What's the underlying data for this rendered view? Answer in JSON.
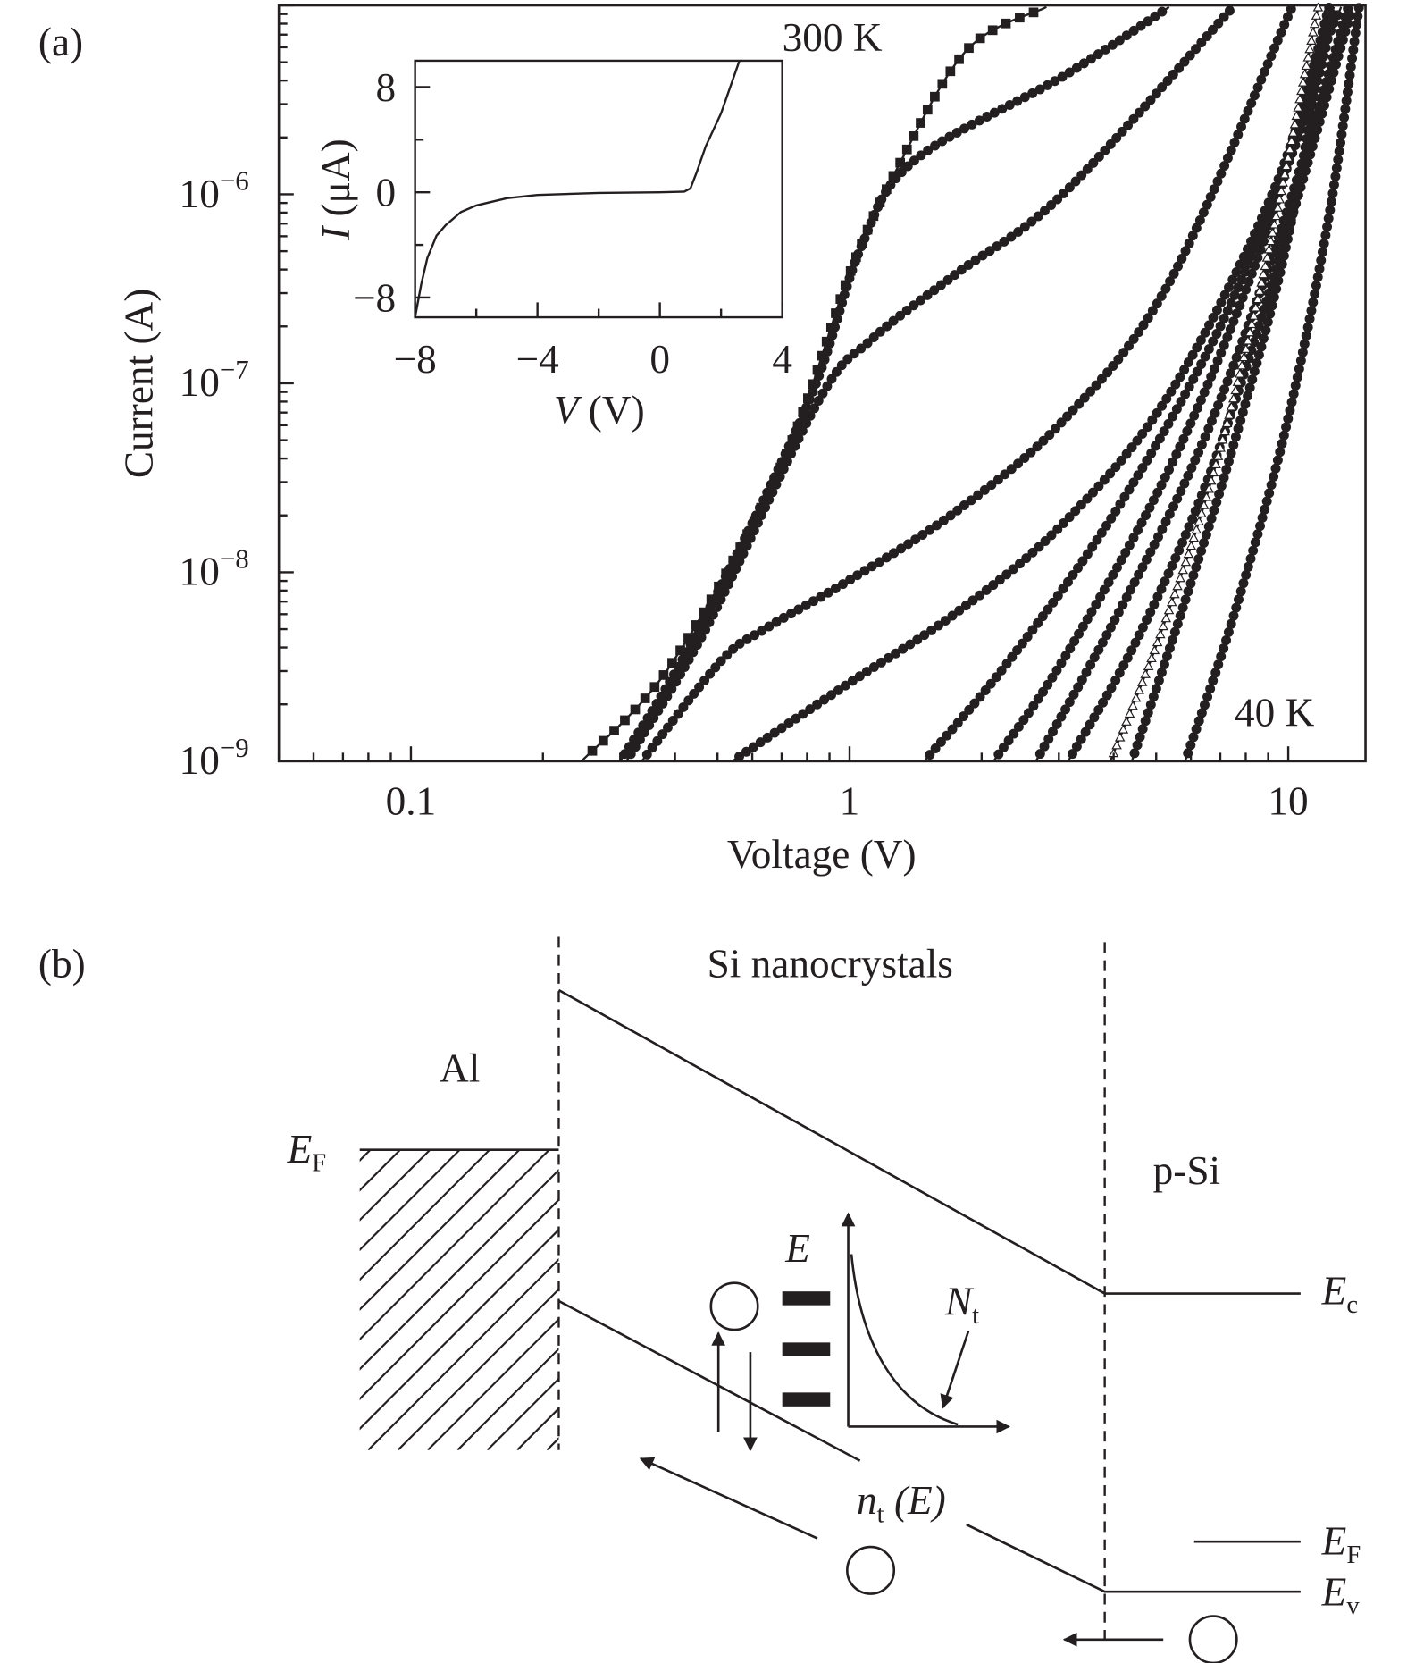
{
  "panel_a": {
    "label": "(a)",
    "annotation_top": "300 K",
    "annotation_bottom": "40 K"
  },
  "panel_b": {
    "label": "(b)",
    "region_middle": "Si nanocrystals",
    "region_left": "Al",
    "region_right": "p-Si",
    "ef_left": {
      "main": "E",
      "sub": "F"
    },
    "ec": {
      "main": "E",
      "sub": "c"
    },
    "ef_right": {
      "main": "E",
      "sub": "F"
    },
    "ev": {
      "main": "E",
      "sub": "v"
    },
    "dos_axis": "E",
    "nt": {
      "main": "N",
      "sub": "t"
    },
    "nt_e": {
      "main": "n",
      "sub": "t",
      "rest": " (E)"
    }
  },
  "chart_data": [
    {
      "type": "scatter",
      "title": "",
      "xlabel": "Voltage (V)",
      "ylabel": "Current (A)",
      "xscale": "log",
      "yscale": "log",
      "xlim": [
        0.05,
        15
      ],
      "ylim": [
        1e-09,
        1e-05
      ],
      "xticks": [
        0.1,
        1,
        10
      ],
      "xtick_labels": [
        "0.1",
        "1",
        "10"
      ],
      "yticks": [
        1e-09,
        1e-08,
        1e-07,
        1e-06
      ],
      "ytick_labels": [
        {
          "base": "10",
          "exp": "−9"
        },
        {
          "base": "10",
          "exp": "−8"
        },
        {
          "base": "10",
          "exp": "−7"
        },
        {
          "base": "10",
          "exp": "−6"
        }
      ],
      "grid": false,
      "legend": "none",
      "marker_color": "#231f20",
      "series": [
        {
          "marker": "square",
          "points": [
            [
              0.245,
              1e-09
            ],
            [
              0.39,
              3.2e-09
            ],
            [
              0.7,
              3.7e-08
            ],
            [
              1.0,
              3.8e-07
            ],
            [
              1.29,
              1.4e-06
            ],
            [
              1.85,
              5.8e-06
            ],
            [
              2.81,
              9.8e-06
            ]
          ]
        },
        {
          "marker": "circle",
          "points": [
            [
              0.3,
              1e-09
            ],
            [
              0.44,
              4.4e-09
            ],
            [
              0.8,
              7.6e-08
            ],
            [
              1.06,
              5.2e-07
            ],
            [
              1.4,
              1.5e-06
            ],
            [
              3.06,
              4.2e-06
            ],
            [
              5.35,
              9.8e-06
            ]
          ]
        },
        {
          "marker": "circle",
          "points": [
            [
              0.31,
              1e-09
            ],
            [
              0.47,
              5e-09
            ],
            [
              0.85,
              8.1e-08
            ],
            [
              1.12,
              1.7e-07
            ],
            [
              1.75,
              3.8e-07
            ],
            [
              3.06,
              1e-06
            ],
            [
              7.48,
              9.8e-06
            ]
          ]
        },
        {
          "marker": "circle",
          "points": [
            [
              0.336,
              1e-09
            ],
            [
              0.51,
              3.4e-09
            ],
            [
              0.64,
              5e-09
            ],
            [
              1.0,
              9.1e-09
            ],
            [
              1.75,
              2.1e-08
            ],
            [
              3.06,
              6.3e-08
            ],
            [
              5.35,
              3.4e-07
            ],
            [
              10.2,
              9.8e-06
            ]
          ]
        },
        {
          "marker": "circle",
          "points": [
            [
              0.54,
              1e-09
            ],
            [
              1.0,
              2.6e-09
            ],
            [
              1.75,
              6.1e-09
            ],
            [
              3.06,
              1.8e-08
            ],
            [
              5.35,
              8.7e-08
            ],
            [
              9.35,
              1.1e-06
            ],
            [
              12.4,
              9.8e-06
            ]
          ]
        },
        {
          "marker": "circle",
          "points": [
            [
              1.48,
              1e-09
            ],
            [
              2.31,
              3.4e-09
            ],
            [
              4.04,
              2.1e-08
            ],
            [
              7.07,
              2.1e-07
            ],
            [
              11.1,
              2.8e-06
            ],
            [
              12.7,
              9.8e-06
            ]
          ]
        },
        {
          "marker": "circle",
          "points": [
            [
              2.13,
              1e-09
            ],
            [
              3.06,
              3.4e-09
            ],
            [
              5.35,
              3.5e-08
            ],
            [
              8.36,
              4.1e-07
            ],
            [
              11.7,
              4.8e-06
            ],
            [
              13.2,
              9.8e-06
            ]
          ]
        },
        {
          "marker": "circle",
          "points": [
            [
              2.66,
              1e-09
            ],
            [
              4.04,
              5.7e-09
            ],
            [
              6.32,
              4.6e-08
            ],
            [
              9.35,
              5.3e-07
            ],
            [
              13.7,
              9.8e-06
            ]
          ]
        },
        {
          "marker": "circle",
          "points": [
            [
              3.15,
              1e-09
            ],
            [
              4.52,
              4.4e-09
            ],
            [
              6.69,
              3.5e-08
            ],
            [
              9.89,
              6e-07
            ],
            [
              14.0,
              9.8e-06
            ]
          ]
        },
        {
          "marker": "triangle-open",
          "points": [
            [
              3.93,
              1e-09
            ],
            [
              5.06,
              4.4e-09
            ],
            [
              6.69,
              3.1e-08
            ],
            [
              8.85,
              4.1e-07
            ],
            [
              11.7,
              9.8e-06
            ]
          ]
        },
        {
          "marker": "circle",
          "points": [
            [
              4.4,
              1e-09
            ],
            [
              5.65,
              5.7e-09
            ],
            [
              7.48,
              4.6e-08
            ],
            [
              9.89,
              5.3e-07
            ],
            [
              12.4,
              9.8e-06
            ]
          ]
        },
        {
          "marker": "circle",
          "points": [
            [
              5.82,
              1e-09
            ],
            [
              7.48,
              5.7e-09
            ],
            [
              9.89,
              5.9e-08
            ],
            [
              12.4,
              7.8e-07
            ],
            [
              14.5,
              9.8e-06
            ]
          ]
        }
      ]
    },
    {
      "type": "line",
      "title": "",
      "xlabel": {
        "var": "V",
        "unit": " (V)"
      },
      "ylabel": {
        "var": "I",
        "unit": " (μA)"
      },
      "xlim": [
        -8,
        4
      ],
      "ylim": [
        -9.5,
        10
      ],
      "xticks": [
        -8,
        -4,
        0,
        4
      ],
      "xtick_labels": [
        "−8",
        "−4",
        "0",
        "4"
      ],
      "yticks": [
        -8,
        0,
        8
      ],
      "ytick_labels": [
        "−8",
        "0",
        "8"
      ],
      "grid": false,
      "points": [
        [
          -8,
          -9.5
        ],
        [
          -7.8,
          -7
        ],
        [
          -7.6,
          -5
        ],
        [
          -7.3,
          -3.3
        ],
        [
          -7,
          -2.5
        ],
        [
          -6.5,
          -1.5
        ],
        [
          -6,
          -1
        ],
        [
          -5,
          -0.45
        ],
        [
          -4,
          -0.2
        ],
        [
          -2,
          -0.05
        ],
        [
          0,
          0
        ],
        [
          0.8,
          0.05
        ],
        [
          1.0,
          0.3
        ],
        [
          1.2,
          1.5
        ],
        [
          1.5,
          3.5
        ],
        [
          2,
          6
        ],
        [
          2.6,
          10
        ]
      ]
    }
  ]
}
